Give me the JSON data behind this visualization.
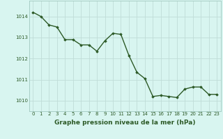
{
  "x": [
    0,
    1,
    2,
    3,
    4,
    5,
    6,
    7,
    8,
    9,
    10,
    11,
    12,
    13,
    14,
    15,
    16,
    17,
    18,
    19,
    20,
    21,
    22,
    23
  ],
  "y": [
    1014.2,
    1014.0,
    1013.6,
    1013.5,
    1012.9,
    1012.9,
    1012.65,
    1012.65,
    1012.35,
    1012.85,
    1013.2,
    1013.15,
    1012.15,
    1011.35,
    1011.05,
    1010.2,
    1010.25,
    1010.2,
    1010.15,
    1010.55,
    1010.65,
    1010.65,
    1010.3,
    1010.3
  ],
  "line_color": "#2d5a27",
  "marker": "D",
  "marker_size": 1.8,
  "linewidth": 1.0,
  "bg_color": "#d8f5f0",
  "grid_color": "#c0ddd8",
  "xlabel": "Graphe pression niveau de la mer (hPa)",
  "xlabel_fontsize": 6.5,
  "xlabel_color": "#2d5a27",
  "ylabel_ticks": [
    1010,
    1011,
    1012,
    1013,
    1014
  ],
  "xlim": [
    -0.5,
    23.5
  ],
  "ylim": [
    1009.5,
    1014.75
  ],
  "xticks": [
    0,
    1,
    2,
    3,
    4,
    5,
    6,
    7,
    8,
    9,
    10,
    11,
    12,
    13,
    14,
    15,
    16,
    17,
    18,
    19,
    20,
    21,
    22,
    23
  ],
  "tick_fontsize": 5.0,
  "tick_color": "#2d5a27",
  "spine_color": "#a0c8c0"
}
